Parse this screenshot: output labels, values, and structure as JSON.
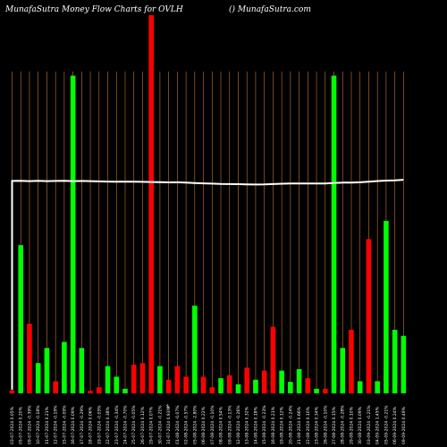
{
  "header": {
    "left": "MunafaSutra  Money Flow  Charts for OVLH",
    "right": "() MunafaSutra.com"
  },
  "chart_data": {
    "type": "bar",
    "title": "MunafaSutra  Money Flow  Charts for OVLH",
    "axis_symbol": "$",
    "categories": [
      "03-07-2024 0.05%",
      "05-07-2024 0.20%",
      "09-07-2024 -0.39%",
      "10-07-2024 -0.18%",
      "11-07-2024 0.21%",
      "12-07-2024 -0.19%",
      "15-07-2024 -0.09%",
      "16-07-2024 0.09%",
      "17-07-2024 -0.29%",
      "18-07-2024 0.06%",
      "19-07-2024 -0.05%",
      "22-07-2024 0.38%",
      "23-07-2024 -0.34%",
      "24-07-2024 -0.70%",
      "25-07-2024 -0.05%",
      "26-07-2024 0.12%",
      "29-07-2024 0.07%",
      "30-07-2024 -0.21%",
      "31-07-2024 0.93%",
      "01-08-2024 -0.07%",
      "02-08-2024 -0.57%",
      "05-08-2024 -2.80%",
      "06-08-2024 0.22%",
      "07-08-2024 -0.10%",
      "08-08-2024 0.54%",
      "09-08-2024 -0.13%",
      "12-08-2024 -0.26%",
      "13-08-2024 0.32%",
      "14-08-2024 0.18%",
      "15-08-2024 -0.23%",
      "16-08-2024 0.21%",
      "19-08-2024 0.12%",
      "20-08-2024 -0.24%",
      "21-08-2024 0.66%",
      "22-08-2024 0.10%",
      "23-08-2024 0.34%",
      "26-08-2024 -0.10%",
      "27-08-2024 0.15%",
      "28-08-2024 -0.28%",
      "29-08-2024 0.10%",
      "30-08-2024 0.09%",
      "03-09-2024 -0.21%",
      "04-09-2024 1.45%",
      "05-09-2024 -0.21%",
      "06-09-2024 0.24%",
      "09-09-2024 0.49%"
    ],
    "flow": [
      "red",
      "green",
      "red",
      "green",
      "green",
      "red",
      "green",
      "green",
      "green",
      "red",
      "red",
      "green",
      "green",
      "green",
      "red",
      "red",
      "red",
      "green",
      "red",
      "red",
      "red",
      "green",
      "red",
      "red",
      "green",
      "red",
      "green",
      "red",
      "green",
      "red",
      "red",
      "green",
      "green",
      "green",
      "red",
      "green",
      "red",
      "green",
      "green",
      "red",
      "green",
      "red",
      "green",
      "green",
      "green",
      "green"
    ],
    "values": [
      1,
      49,
      23,
      10,
      15,
      4,
      17,
      105,
      15,
      0.8,
      2,
      9,
      5.5,
      1.5,
      9.5,
      10,
      125,
      9,
      4.5,
      9,
      5.5,
      29,
      5.5,
      2,
      5,
      6,
      3,
      8.5,
      4.5,
      7.5,
      22,
      7.5,
      3.8,
      8,
      5,
      1.5,
      1.5,
      105,
      15,
      21,
      4,
      51,
      4,
      57,
      21,
      19
    ],
    "line_price": [
      39.5,
      39.7,
      39.3,
      39.7,
      39.3,
      39.5,
      39.7,
      39.3,
      39.5,
      39.3,
      39.0,
      38.8,
      38.6,
      38.8,
      38.6,
      38.4,
      38.2,
      38.0,
      37.8,
      37.9,
      37.6,
      37.0,
      36.6,
      36.2,
      35.8,
      35.7,
      35.6,
      35.3,
      35.1,
      35.2,
      35.7,
      36.1,
      36.3,
      36.4,
      36.4,
      36.4,
      36.4,
      37.1,
      37.5,
      37.4,
      37.9,
      38.7,
      39.4,
      40.0,
      40.2,
      41.0
    ],
    "line_start": 0.75,
    "ylim": [
      0,
      130
    ],
    "line_ylim": [
      0,
      80
    ],
    "colors": {
      "green": "#00ff00",
      "red": "#ff0000",
      "grid": "#c87533",
      "line": "#ffffff",
      "background": "#000000"
    },
    "grid": true
  }
}
